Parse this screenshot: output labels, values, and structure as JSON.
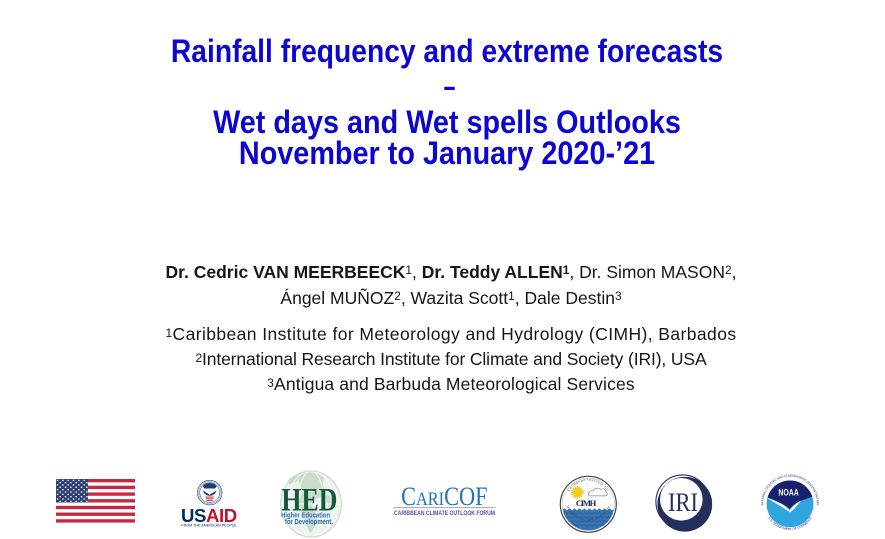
{
  "title": {
    "line1": "Rainfall frequency and extreme forecasts",
    "dash": "–",
    "line2": "Wet days and Wet spells Outlooks",
    "line3": "November to January 2020-’21"
  },
  "authors": {
    "line1": [
      {
        "text": "Dr. Cedric VAN MEERBEECK",
        "bold": true
      },
      {
        "text": "1",
        "sup": true
      },
      {
        "text": ", "
      },
      {
        "text": "Dr. Teddy ALLEN",
        "bold": true
      },
      {
        "text": "1",
        "sup": true,
        "bold": true
      },
      {
        "text": ", Dr. Simon MASON"
      },
      {
        "text": "2",
        "sup": true
      },
      {
        "text": ","
      }
    ],
    "line2": [
      {
        "text": "Ángel MUÑOZ"
      },
      {
        "text": "2",
        "sup": true
      },
      {
        "text": ", Wazita Scott"
      },
      {
        "text": "1",
        "sup": true
      },
      {
        "text": ", Dale Destin"
      },
      {
        "text": "3",
        "sup": true
      }
    ]
  },
  "affiliations": [
    {
      "marker": "1",
      "text": "Caribbean Institute for Meteorology and Hydrology (CIMH), Barbados"
    },
    {
      "marker": "2",
      "text": "International Research Institute for Climate and Society (IRI), USA"
    },
    {
      "marker": "3",
      "text": "Antigua and Barbuda Meteorological Services"
    }
  ],
  "logos": {
    "us_flag": {
      "name": "United States flag"
    },
    "usaid": {
      "wordmark_us": "US",
      "wordmark_aid": "AID",
      "tagline": "FROM THE AMERICAN PEOPLE"
    },
    "hed": {
      "acronym": "HED",
      "tagline_line1": "Higher Education",
      "tagline_line2": "for Development."
    },
    "caricof": {
      "wordmark": "CariCOF",
      "part_c1": "C",
      "part_ari": "ARI",
      "part_cof": "COF",
      "subtitle": "CARIBBEAN CLIMATE OUTLOOK FORUM"
    },
    "cimh": {
      "acronym": "CIMH",
      "arc_top": "Caribbean Institute for",
      "arc_bottom": "Meteorology and Hydrology"
    },
    "iri": {
      "acronym": "IRI"
    },
    "noaa": {
      "acronym": "NOAA",
      "arc_top": "NATIONAL OCEANIC AND ATMOSPHERIC ADMINISTRATION",
      "arc_bottom": "U.S. DEPARTMENT OF COMMERCE"
    }
  },
  "colors": {
    "title-blue": "#0d06d0",
    "text-black": "#161616",
    "flag-red": "#c32a40",
    "flag-blue": "#2c3d72",
    "usaid-navy": "#1f3c77",
    "usaid-blue": "#002a68",
    "usaid-red": "#c0112e",
    "hed-green": "#17593c",
    "hed-globe-fill": "#edf2ed",
    "hed-globe-land": "#cbdccb",
    "hed-globe-rim": "#d2dcd2",
    "hed-blue": "#2b6eb8",
    "caricof-blue": "#2272b8",
    "caricof-purple": "#4f519b",
    "caricof-gray": "#9a9aac",
    "cimh-ring": "#444444",
    "cimh-navy": "#232c4e",
    "cimh-water": "#3672b4",
    "cimh-water-dark": "#2a5a94",
    "cimh-sun": "#f2d011",
    "cimh-sun-ray": "#e6c31c",
    "cimh-arc-text": "#4a4a4a",
    "iri-navy": "#242f5e",
    "noaa-navy": "#182070",
    "noaa-blue": "#2fa6e0",
    "noaa-arc-text": "#1a2476"
  }
}
